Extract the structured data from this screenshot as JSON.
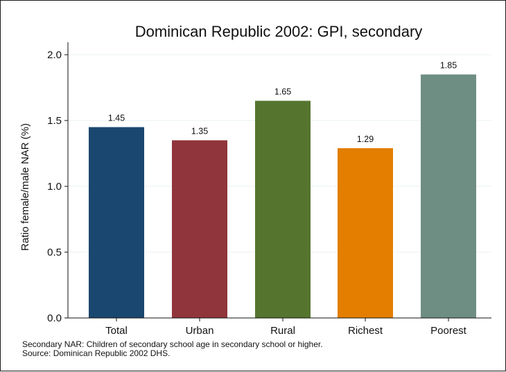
{
  "chart_data": {
    "type": "bar",
    "title": "Dominican Republic 2002: GPI, secondary",
    "xlabel": "",
    "ylabel": "Ratio female/male NAR (%)",
    "categories": [
      "Total",
      "Urban",
      "Rural",
      "Richest",
      "Poorest"
    ],
    "values": [
      1.45,
      1.35,
      1.65,
      1.29,
      1.85
    ],
    "value_labels": [
      "1.45",
      "1.35",
      "1.65",
      "1.29",
      "1.85"
    ],
    "colors": [
      "#1a476f",
      "#90353b",
      "#55752f",
      "#e37e00",
      "#6e8e84"
    ],
    "ylim": [
      0,
      2
    ],
    "yticks": [
      0,
      0.5,
      1.0,
      1.5,
      2.0
    ],
    "ytick_labels": [
      "0.0",
      "0.5",
      "1.0",
      "1.5",
      "2.0"
    ],
    "grid": true,
    "notes": [
      "Secondary NAR: Children of secondary school age in secondary school or higher.",
      "Source: Dominican Republic 2002 DHS."
    ]
  }
}
